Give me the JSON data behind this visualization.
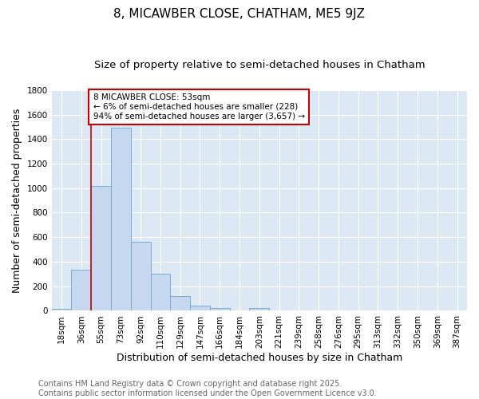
{
  "title": "8, MICAWBER CLOSE, CHATHAM, ME5 9JZ",
  "subtitle": "Size of property relative to semi-detached houses in Chatham",
  "xlabel": "Distribution of semi-detached houses by size in Chatham",
  "ylabel": "Number of semi-detached properties",
  "bar_color": "#c5d8f0",
  "bar_edge_color": "#7aaad4",
  "plot_bg_color": "#dce9f5",
  "figure_bg_color": "#ffffff",
  "grid_color": "#ffffff",
  "categories": [
    "18sqm",
    "36sqm",
    "55sqm",
    "73sqm",
    "92sqm",
    "110sqm",
    "129sqm",
    "147sqm",
    "166sqm",
    "184sqm",
    "203sqm",
    "221sqm",
    "239sqm",
    "258sqm",
    "276sqm",
    "295sqm",
    "313sqm",
    "332sqm",
    "350sqm",
    "369sqm",
    "387sqm"
  ],
  "values": [
    18,
    338,
    1020,
    1490,
    565,
    300,
    120,
    45,
    22,
    5,
    22,
    2,
    2,
    0,
    0,
    0,
    0,
    0,
    0,
    0,
    0
  ],
  "ylim": [
    0,
    1800
  ],
  "yticks": [
    0,
    200,
    400,
    600,
    800,
    1000,
    1200,
    1400,
    1600,
    1800
  ],
  "red_line_index": 2,
  "annotation_text": "8 MICAWBER CLOSE: 53sqm\n← 6% of semi-detached houses are smaller (228)\n94% of semi-detached houses are larger (3,657) →",
  "annotation_box_color": "#ffffff",
  "annotation_box_edge": "#cc0000",
  "red_line_color": "#cc0000",
  "footer_line1": "Contains HM Land Registry data © Crown copyright and database right 2025.",
  "footer_line2": "Contains public sector information licensed under the Open Government Licence v3.0.",
  "title_fontsize": 11,
  "subtitle_fontsize": 9.5,
  "axis_label_fontsize": 9,
  "tick_fontsize": 7.5,
  "footer_fontsize": 7,
  "annotation_fontsize": 7.5
}
